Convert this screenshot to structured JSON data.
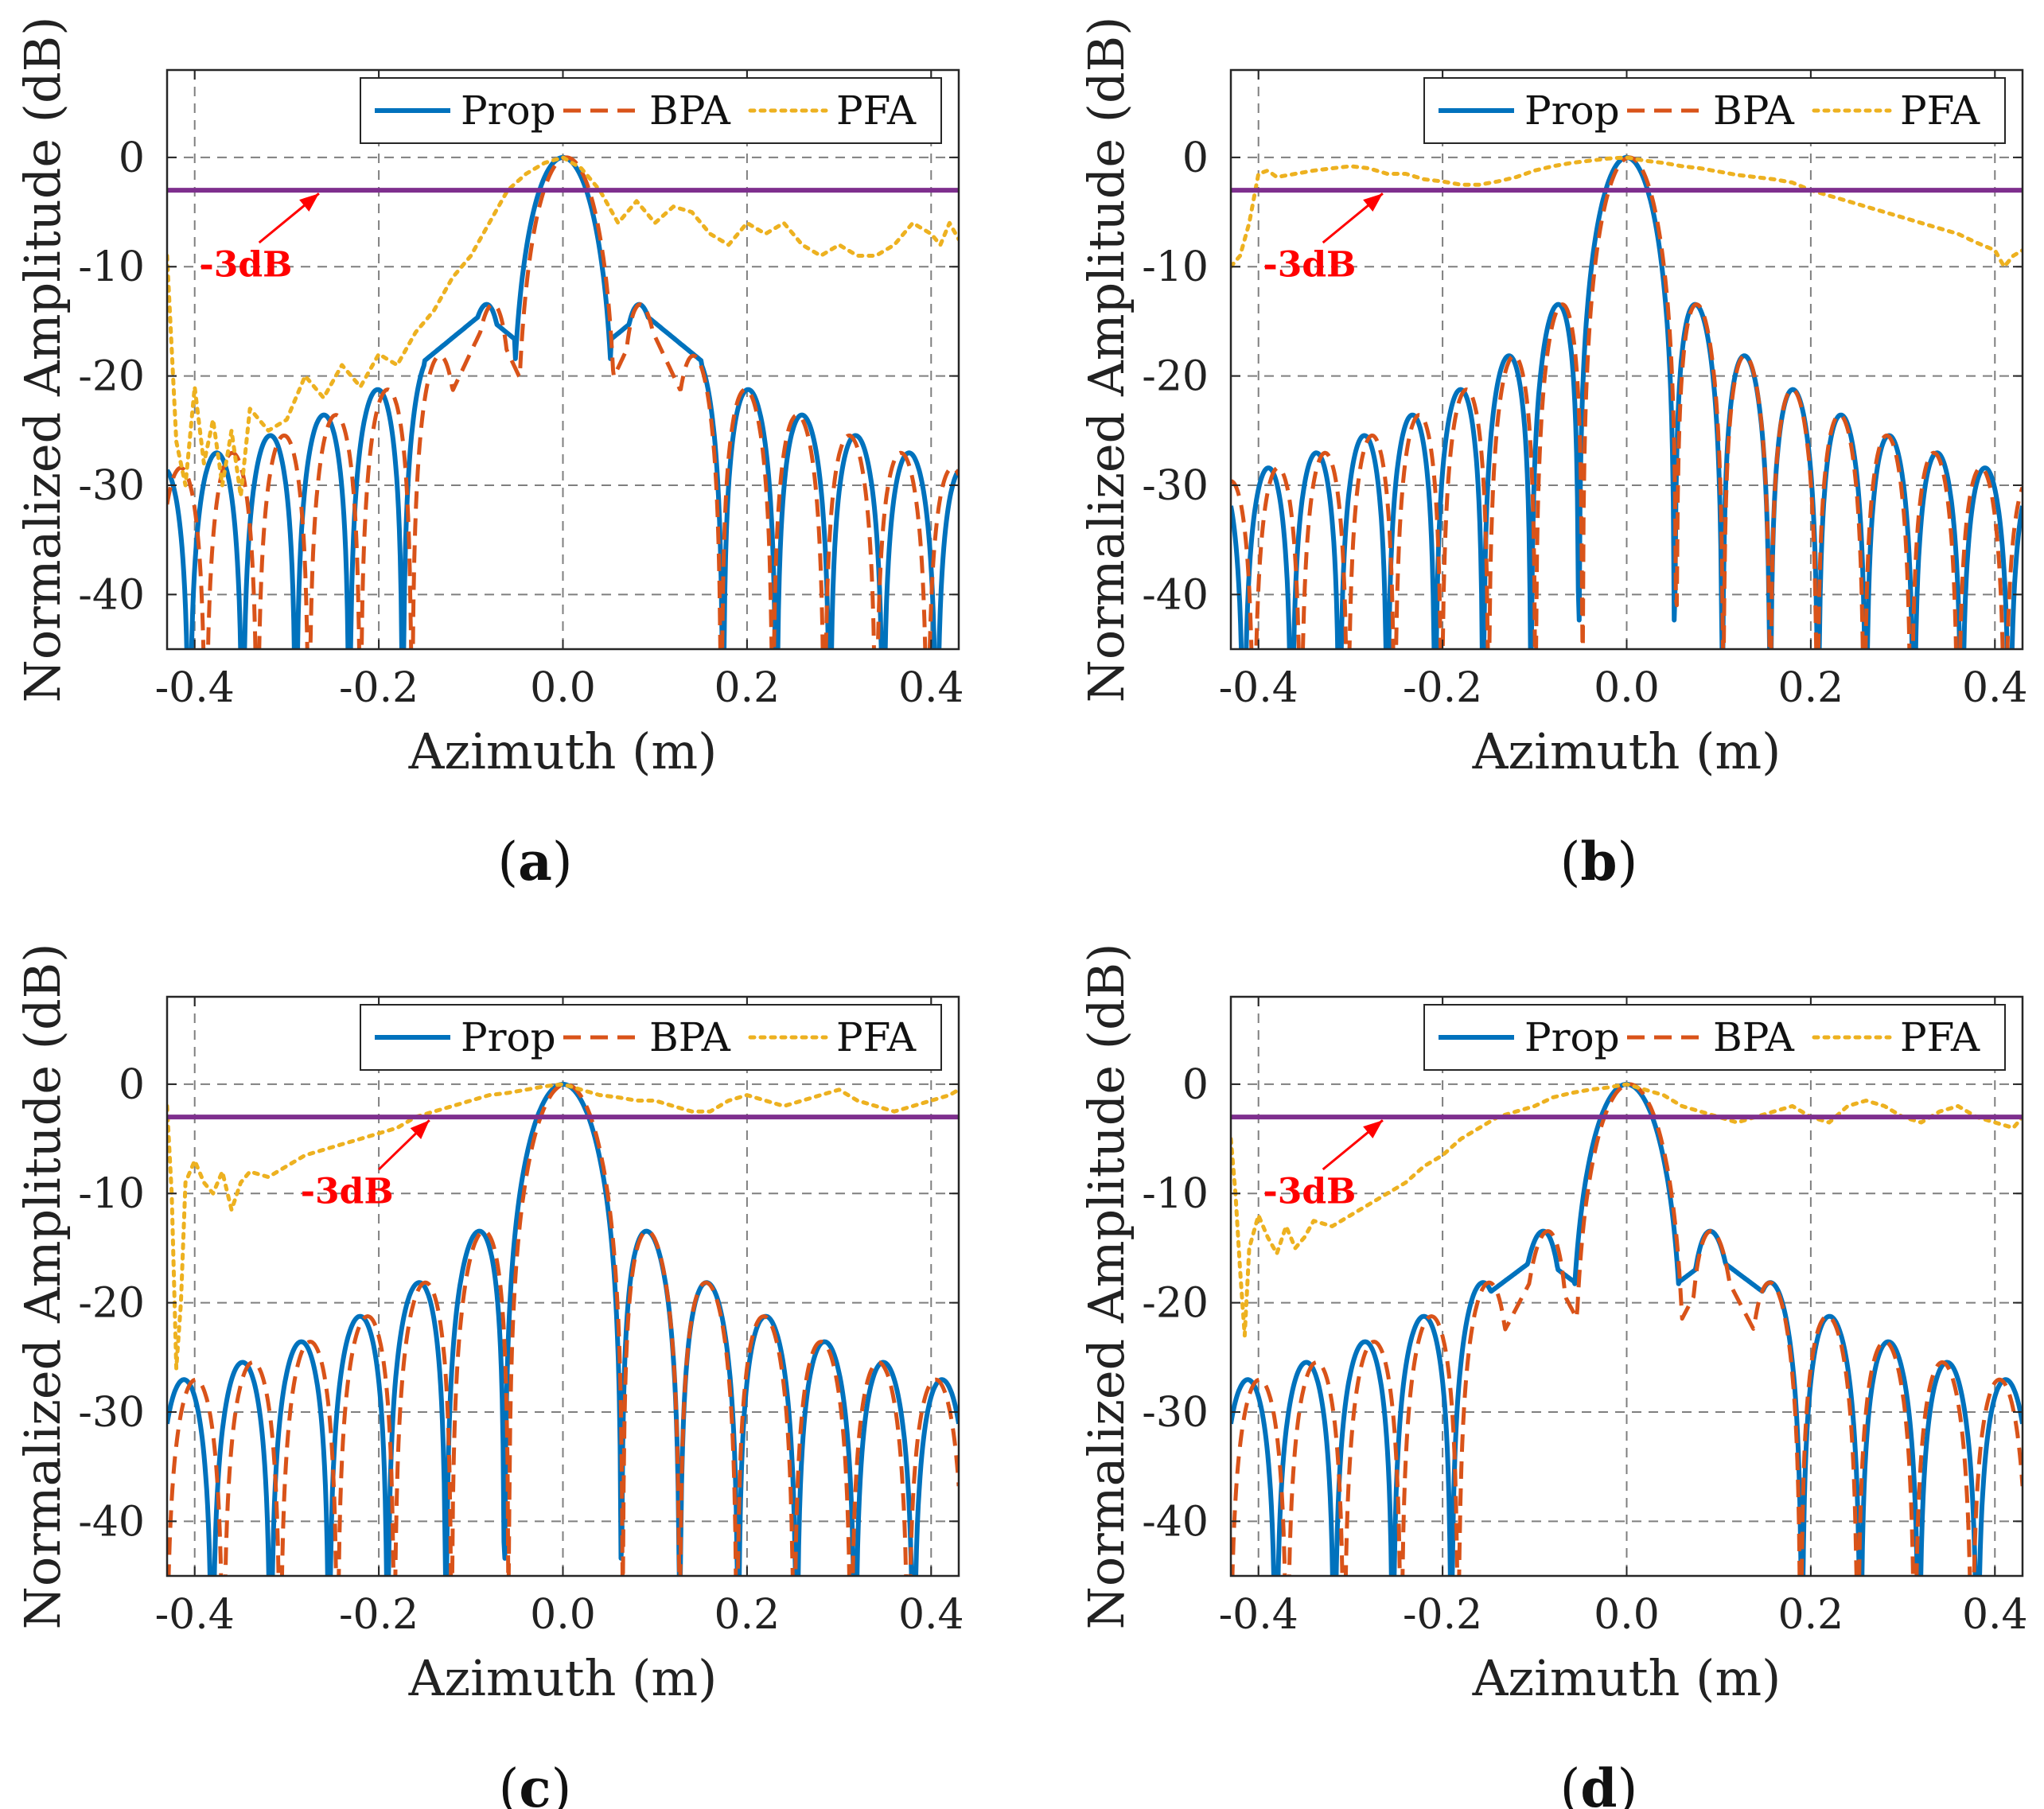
{
  "colors": {
    "prop": "#0072BD",
    "bpa": "#D95319",
    "pfa": "#EDB120",
    "threshold": "#7E2F8E",
    "annotation": "#FF0000",
    "grid": "#555555"
  },
  "chart_data": [
    {
      "type": "line",
      "panel": "a",
      "caption_open": "(",
      "caption_letter": "a",
      "caption_close": ")",
      "xlabel": "Azimuth (m)",
      "ylabel": "Normalized Amplitude (dB)",
      "xlim": [
        -0.43,
        0.43
      ],
      "ylim": [
        -45,
        8
      ],
      "xticks": [
        -0.4,
        -0.2,
        0.0,
        0.2,
        0.4
      ],
      "xticklabels": [
        "-0.4",
        "-0.2",
        "0.0",
        "0.2",
        "0.4"
      ],
      "yticks": [
        0,
        -10,
        -20,
        -30,
        -40
      ],
      "yticklabels": [
        "0",
        "-10",
        "-20",
        "-30",
        "-40"
      ],
      "grid": true,
      "legend_position": "top-right",
      "threshold": {
        "y": -3,
        "label": "-3dB",
        "label_at": [
          -0.395,
          -9.8
        ],
        "arrow_from": [
          -0.33,
          -7.8
        ],
        "arrow_to": [
          -0.265,
          -3.3
        ]
      },
      "series": [
        {
          "name": "Prop",
          "style": "solid",
          "params": {
            "w": 0.058,
            "shift": 0.0,
            "asym": 0.16,
            "floor": -48,
            "fillDeep": 4
          }
        },
        {
          "name": "BPA",
          "style": "dashed",
          "params": {
            "w": 0.056,
            "shift": 0.004,
            "asym": 0.16,
            "floor": -48,
            "fillDeep": 10
          }
        },
        {
          "name": "PFA",
          "style": "dotted",
          "x": [
            -0.43,
            -0.42,
            -0.41,
            -0.4,
            -0.39,
            -0.38,
            -0.37,
            -0.36,
            -0.35,
            -0.34,
            -0.33,
            -0.32,
            -0.3,
            -0.28,
            -0.26,
            -0.24,
            -0.22,
            -0.2,
            -0.18,
            -0.16,
            -0.14,
            -0.12,
            -0.1,
            -0.08,
            -0.06,
            -0.04,
            -0.02,
            0.0,
            0.02,
            0.04,
            0.06,
            0.08,
            0.1,
            0.12,
            0.14,
            0.16,
            0.18,
            0.2,
            0.22,
            0.24,
            0.26,
            0.28,
            0.3,
            0.32,
            0.34,
            0.36,
            0.38,
            0.4,
            0.41,
            0.42,
            0.43
          ],
          "y": [
            -9,
            -26,
            -30,
            -21,
            -28,
            -24,
            -30,
            -25,
            -31,
            -23,
            -24,
            -25,
            -24,
            -20,
            -22,
            -19,
            -21,
            -18,
            -19,
            -16,
            -14,
            -11,
            -9,
            -6,
            -3,
            -1.5,
            -0.5,
            0,
            -1,
            -3,
            -6,
            -4,
            -6,
            -4.5,
            -5,
            -7,
            -8,
            -6,
            -7,
            -6,
            -8,
            -9,
            -8,
            -9,
            -9,
            -8,
            -6,
            -7,
            -8,
            -6,
            -7.5
          ]
        }
      ]
    },
    {
      "type": "line",
      "panel": "b",
      "caption_open": "(",
      "caption_letter": "b",
      "caption_close": ")",
      "xlabel": "Azimuth (m)",
      "ylabel": "Normalized Amplitude (dB)",
      "xlim": [
        -0.43,
        0.43
      ],
      "ylim": [
        -45,
        8
      ],
      "xticks": [
        -0.4,
        -0.2,
        0.0,
        0.2,
        0.4
      ],
      "xticklabels": [
        "-0.4",
        "-0.2",
        "0.0",
        "0.2",
        "0.4"
      ],
      "yticks": [
        0,
        -10,
        -20,
        -30,
        -40
      ],
      "yticklabels": [
        "0",
        "-10",
        "-20",
        "-30",
        "-40"
      ],
      "grid": true,
      "legend_position": "top-right",
      "threshold": {
        "y": -3,
        "label": "-3dB",
        "label_at": [
          -0.395,
          -9.8
        ],
        "arrow_from": [
          -0.33,
          -7.8
        ],
        "arrow_to": [
          -0.265,
          -3.3
        ]
      },
      "series": [
        {
          "name": "Prop",
          "style": "solid",
          "params": {
            "w": 0.052,
            "shift": 0.0,
            "asym": 0.0,
            "floor": -48,
            "fillDeep": 4
          }
        },
        {
          "name": "BPA",
          "style": "dashed",
          "params": {
            "w": 0.051,
            "shift": 0.003,
            "asym": 0.0,
            "floor": -48,
            "fillDeep": 10
          }
        },
        {
          "name": "PFA",
          "style": "dotted",
          "x": [
            -0.43,
            -0.42,
            -0.41,
            -0.4,
            -0.39,
            -0.38,
            -0.36,
            -0.34,
            -0.32,
            -0.3,
            -0.28,
            -0.26,
            -0.24,
            -0.22,
            -0.2,
            -0.18,
            -0.16,
            -0.14,
            -0.12,
            -0.1,
            -0.08,
            -0.06,
            -0.04,
            -0.02,
            0.0,
            0.02,
            0.04,
            0.06,
            0.08,
            0.1,
            0.12,
            0.14,
            0.16,
            0.18,
            0.2,
            0.22,
            0.24,
            0.26,
            0.28,
            0.3,
            0.32,
            0.34,
            0.36,
            0.38,
            0.4,
            0.41,
            0.42,
            0.43
          ],
          "y": [
            -10,
            -9,
            -6,
            -1.5,
            -1.2,
            -1.8,
            -1.5,
            -1.2,
            -1.0,
            -0.8,
            -1.0,
            -1.5,
            -1.5,
            -2.0,
            -2.2,
            -2.5,
            -2.5,
            -2.2,
            -1.8,
            -1.2,
            -0.8,
            -0.5,
            -0.3,
            -0.1,
            0,
            -0.3,
            -0.5,
            -0.8,
            -1.0,
            -1.3,
            -1.6,
            -1.8,
            -2.0,
            -2.3,
            -3.0,
            -3.5,
            -4.0,
            -4.5,
            -5.0,
            -5.5,
            -6.0,
            -6.5,
            -7.0,
            -7.8,
            -8.5,
            -10,
            -9,
            -8.5
          ]
        }
      ]
    },
    {
      "type": "line",
      "panel": "c",
      "caption_open": "(",
      "caption_letter": "c",
      "caption_close": ")",
      "xlabel": "Azimuth (m)",
      "ylabel": "Normalized Amplitude (dB)",
      "xlim": [
        -0.43,
        0.43
      ],
      "ylim": [
        -45,
        8
      ],
      "xticks": [
        -0.4,
        -0.2,
        0.0,
        0.2,
        0.4
      ],
      "xticklabels": [
        "-0.4",
        "-0.2",
        "0.0",
        "0.2",
        "0.4"
      ],
      "yticks": [
        0,
        -10,
        -20,
        -30,
        -40
      ],
      "yticklabels": [
        "0",
        "-10",
        "-20",
        "-30",
        "-40"
      ],
      "grid": true,
      "legend_position": "top-right",
      "threshold": {
        "y": -3,
        "label": "-3dB",
        "label_at": [
          -0.285,
          -9.8
        ],
        "arrow_from": [
          -0.2,
          -7.8
        ],
        "arrow_to": [
          -0.145,
          -3.3
        ]
      },
      "series": [
        {
          "name": "Prop",
          "style": "solid",
          "params": {
            "w": 0.0635,
            "shift": 0.0,
            "asym": 0.0,
            "floor": -48,
            "fillDeep": 4
          }
        },
        {
          "name": "BPA",
          "style": "dashed",
          "params": {
            "w": 0.062,
            "shift": 0.003,
            "asym": 0.0,
            "floor": -48,
            "fillDeep": 10
          }
        },
        {
          "name": "PFA",
          "style": "dotted",
          "x": [
            -0.43,
            -0.425,
            -0.42,
            -0.415,
            -0.41,
            -0.4,
            -0.39,
            -0.38,
            -0.37,
            -0.36,
            -0.35,
            -0.34,
            -0.32,
            -0.3,
            -0.28,
            -0.26,
            -0.24,
            -0.22,
            -0.2,
            -0.18,
            -0.16,
            -0.14,
            -0.12,
            -0.1,
            -0.08,
            -0.06,
            -0.04,
            -0.02,
            0.0,
            0.02,
            0.04,
            0.06,
            0.08,
            0.1,
            0.12,
            0.14,
            0.16,
            0.18,
            0.2,
            0.22,
            0.24,
            0.26,
            0.28,
            0.3,
            0.32,
            0.34,
            0.36,
            0.38,
            0.4,
            0.42,
            0.43
          ],
          "y": [
            -2,
            -10,
            -26,
            -20,
            -9,
            -7,
            -9,
            -10,
            -8,
            -11.5,
            -9,
            -8,
            -8.5,
            -7.5,
            -6.5,
            -6,
            -5.5,
            -5,
            -4.5,
            -4,
            -3,
            -2.5,
            -2,
            -1.5,
            -1,
            -0.8,
            -0.5,
            -0.2,
            0,
            -0.5,
            -1,
            -1.2,
            -1.5,
            -1.5,
            -2,
            -2.5,
            -2.5,
            -1.5,
            -1,
            -1.5,
            -2,
            -1.5,
            -1,
            -0.5,
            -1.5,
            -2,
            -2.5,
            -2,
            -1.5,
            -1,
            -0.5
          ]
        }
      ]
    },
    {
      "type": "line",
      "panel": "d",
      "caption_open": "(",
      "caption_letter": "d",
      "caption_close": ")",
      "xlabel": "Azimuth (m)",
      "ylabel": "Normalized Amplitude (dB)",
      "xlim": [
        -0.43,
        0.43
      ],
      "ylim": [
        -45,
        8
      ],
      "xticks": [
        -0.4,
        -0.2,
        0.0,
        0.2,
        0.4
      ],
      "xticklabels": [
        "-0.4",
        "-0.2",
        "0.0",
        "0.2",
        "0.4"
      ],
      "yticks": [
        0,
        -10,
        -20,
        -30,
        -40
      ],
      "yticklabels": [
        "0",
        "-10",
        "-20",
        "-30",
        "-40"
      ],
      "grid": true,
      "legend_position": "top-right",
      "threshold": {
        "y": -3,
        "label": "-3dB",
        "label_at": [
          -0.395,
          -9.8
        ],
        "arrow_from": [
          -0.33,
          -7.8
        ],
        "arrow_to": [
          -0.265,
          -3.3
        ]
      },
      "series": [
        {
          "name": "Prop",
          "style": "solid",
          "params": {
            "w": 0.0635,
            "shift": 0.0,
            "asym": 0.12,
            "floor": -48,
            "fillDeep": 4
          }
        },
        {
          "name": "BPA",
          "style": "dashed",
          "params": {
            "w": 0.062,
            "shift": 0.003,
            "asym": 0.12,
            "floor": -48,
            "fillDeep": 10
          }
        },
        {
          "name": "PFA",
          "style": "dotted",
          "x": [
            -0.43,
            -0.425,
            -0.42,
            -0.415,
            -0.41,
            -0.4,
            -0.39,
            -0.38,
            -0.37,
            -0.36,
            -0.35,
            -0.34,
            -0.32,
            -0.3,
            -0.28,
            -0.26,
            -0.24,
            -0.22,
            -0.2,
            -0.18,
            -0.16,
            -0.14,
            -0.12,
            -0.1,
            -0.08,
            -0.06,
            -0.04,
            -0.02,
            0.0,
            0.02,
            0.04,
            0.06,
            0.08,
            0.1,
            0.12,
            0.14,
            0.16,
            0.18,
            0.2,
            0.22,
            0.24,
            0.26,
            0.28,
            0.3,
            0.32,
            0.34,
            0.36,
            0.38,
            0.4,
            0.42,
            0.43
          ],
          "y": [
            -5,
            -10,
            -17,
            -23,
            -15,
            -12,
            -14,
            -15.5,
            -13,
            -15,
            -14,
            -12.5,
            -13,
            -12,
            -11,
            -10,
            -9,
            -7.5,
            -6.5,
            -5,
            -4,
            -3,
            -2.5,
            -2,
            -1.2,
            -0.8,
            -0.5,
            -0.3,
            0,
            -0.5,
            -1,
            -2,
            -2.5,
            -3,
            -3.5,
            -3,
            -2.5,
            -2,
            -3,
            -3.5,
            -2,
            -1.5,
            -2,
            -3,
            -3.5,
            -2.5,
            -2,
            -3,
            -3.5,
            -4,
            -3
          ]
        }
      ]
    }
  ]
}
